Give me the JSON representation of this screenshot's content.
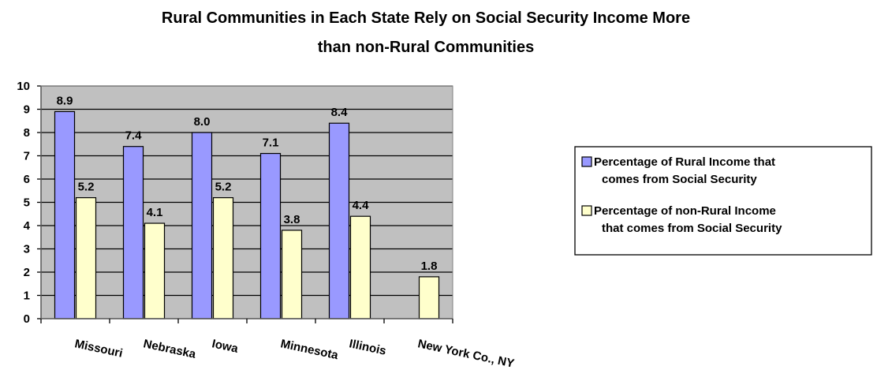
{
  "chart_data": {
    "type": "bar",
    "title": "Rural Communities in Each State Rely on Social Security Income More than non-Rural Communities",
    "title_lines": [
      "Rural Communities in Each State Rely on Social Security Income More",
      "than non-Rural Communities"
    ],
    "categories": [
      "Missouri",
      "Nebraska",
      "Iowa",
      "Minnesota",
      "Illinois",
      "New York Co., NY"
    ],
    "series": [
      {
        "name": "Percentage of Rural Income that comes from Social Security",
        "name_lines": [
          "Percentage of Rural Income that",
          "comes from Social Security"
        ],
        "color": "#9999ff",
        "values": [
          8.9,
          7.4,
          8.0,
          7.1,
          8.4,
          null
        ],
        "labels": [
          "8.9",
          "7.4",
          "8.0",
          "7.1",
          "8.4",
          ""
        ]
      },
      {
        "name": "Percentage of non-Rural Income that comes from Social Security",
        "name_lines": [
          "Percentage of non-Rural Income",
          "that comes from Social Security"
        ],
        "color": "#ffffcc",
        "values": [
          5.2,
          4.1,
          5.2,
          3.8,
          4.4,
          1.8
        ],
        "labels": [
          "5.2",
          "4.1",
          "5.2",
          "3.8",
          "4.4",
          "1.8"
        ]
      }
    ],
    "ylim": [
      0,
      10
    ],
    "yticks": [
      "0",
      "1",
      "2",
      "3",
      "4",
      "5",
      "6",
      "7",
      "8",
      "9",
      "10"
    ],
    "xlabel": "",
    "ylabel": "",
    "plot_background": "#c0c0c0",
    "grid": true,
    "legend_position": "right"
  }
}
